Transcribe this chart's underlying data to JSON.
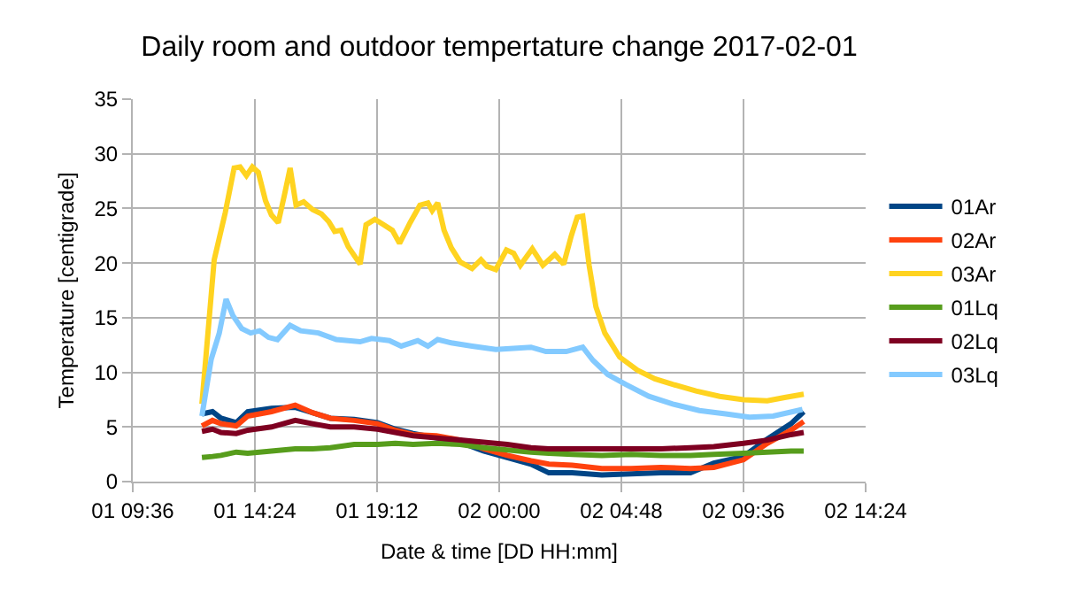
{
  "chart_data": {
    "type": "line",
    "title": "Daily room and outdoor tempertature change 2017-02-01",
    "xlabel": "Date & time [DD HH:mm]",
    "ylabel": "Temperature [centigrade]",
    "xlim": [
      "2017-02-01T09:36",
      "2017-02-02T14:24"
    ],
    "xticks": [
      {
        "value": "2017-02-01T09:36",
        "label": "01 09:36"
      },
      {
        "value": "2017-02-01T14:24",
        "label": "01 14:24"
      },
      {
        "value": "2017-02-01T19:12",
        "label": "01 19:12"
      },
      {
        "value": "2017-02-02T00:00",
        "label": "02 00:00"
      },
      {
        "value": "2017-02-02T04:48",
        "label": "02 04:48"
      },
      {
        "value": "2017-02-02T09:36",
        "label": "02 09:36"
      },
      {
        "value": "2017-02-02T14:24",
        "label": "02 14:24"
      }
    ],
    "ylim": [
      0,
      35
    ],
    "yticks": [
      0,
      5,
      10,
      15,
      20,
      25,
      30,
      35
    ],
    "grid": true,
    "legend": "right",
    "marker": "none",
    "line_style": "solid",
    "x": [
      "2017-02-01T12:19",
      "2017-02-01T12:44",
      "2017-02-01T13:04",
      "2017-02-01T13:40",
      "2017-02-01T14:07",
      "2017-02-01T15:03",
      "2017-02-01T15:59",
      "2017-02-01T16:40",
      "2017-02-01T17:22",
      "2017-02-01T18:18",
      "2017-02-01T19:13",
      "2017-02-01T19:55",
      "2017-02-01T20:37",
      "2017-02-01T21:32",
      "2017-02-01T22:28",
      "2017-02-01T23:23",
      "2017-02-02T00:19",
      "2017-02-02T01:15",
      "2017-02-02T01:57",
      "2017-02-02T02:52",
      "2017-02-02T04:02",
      "2017-02-02T05:11",
      "2017-02-02T06:21",
      "2017-02-02T07:31",
      "2017-02-02T08:26",
      "2017-02-02T09:36",
      "2017-02-02T10:32",
      "2017-02-02T11:28",
      "2017-02-02T11:58"
    ],
    "series": [
      {
        "name": "01Ar",
        "color": "#004586",
        "values": [
          6.2,
          6.4,
          5.8,
          5.4,
          6.4,
          6.7,
          6.8,
          6.3,
          5.8,
          5.7,
          5.4,
          4.8,
          4.4,
          4.0,
          3.6,
          2.8,
          2.2,
          1.6,
          0.8,
          0.8,
          0.6,
          0.7,
          0.8,
          0.8,
          1.7,
          2.3,
          3.9,
          5.3,
          6.4
        ]
      },
      {
        "name": "02Ar",
        "color": "#ff420e",
        "values": [
          5.1,
          5.6,
          5.3,
          5.1,
          6.0,
          6.4,
          7.0,
          6.3,
          5.8,
          5.6,
          5.3,
          4.7,
          4.3,
          4.2,
          3.8,
          3.0,
          2.4,
          1.9,
          1.6,
          1.5,
          1.2,
          1.2,
          1.3,
          1.2,
          1.3,
          2.0,
          3.5,
          4.7,
          5.5
        ]
      },
      {
        "name": "03Ar",
        "color": "#ffd320",
        "x": [
          "2017-02-01T12:19",
          "2017-02-01T12:48",
          "2017-02-01T13:14",
          "2017-02-01T13:35",
          "2017-02-01T13:49",
          "2017-02-01T14:04",
          "2017-02-01T14:18",
          "2017-02-01T14:32",
          "2017-02-01T14:49",
          "2017-02-01T15:03",
          "2017-02-01T15:19",
          "2017-02-01T15:34",
          "2017-02-01T15:47",
          "2017-02-01T16:01",
          "2017-02-01T16:19",
          "2017-02-01T16:40",
          "2017-02-01T17:01",
          "2017-02-01T17:18",
          "2017-02-01T17:32",
          "2017-02-01T17:47",
          "2017-02-01T18:04",
          "2017-02-01T18:32",
          "2017-02-01T18:46",
          "2017-02-01T19:07",
          "2017-02-01T19:28",
          "2017-02-01T19:48",
          "2017-02-01T20:05",
          "2017-02-01T20:30",
          "2017-02-01T20:53",
          "2017-02-01T21:12",
          "2017-02-01T21:22",
          "2017-02-01T21:35",
          "2017-02-01T21:50",
          "2017-02-01T22:07",
          "2017-02-01T22:28",
          "2017-02-01T22:56",
          "2017-02-01T23:17",
          "2017-02-01T23:31",
          "2017-02-01T23:52",
          "2017-02-02T00:17",
          "2017-02-02T00:34",
          "2017-02-02T00:50",
          "2017-02-02T01:18",
          "2017-02-02T01:43",
          "2017-02-02T02:11",
          "2017-02-02T02:32",
          "2017-02-02T02:50",
          "2017-02-02T03:04",
          "2017-02-02T03:17",
          "2017-02-02T03:32",
          "2017-02-02T03:48",
          "2017-02-02T04:09",
          "2017-02-02T04:44",
          "2017-02-02T05:26",
          "2017-02-02T06:07",
          "2017-02-02T06:49",
          "2017-02-02T07:44",
          "2017-02-02T08:40",
          "2017-02-02T09:36",
          "2017-02-02T10:32",
          "2017-02-02T11:13",
          "2017-02-02T11:58"
        ],
        "values": [
          7.1,
          20.3,
          24.6,
          28.7,
          28.8,
          28.0,
          28.8,
          28.3,
          25.7,
          24.4,
          23.7,
          26.3,
          28.7,
          25.3,
          25.6,
          24.9,
          24.5,
          23.8,
          22.9,
          23.0,
          21.5,
          19.9,
          23.5,
          24.0,
          23.5,
          23.0,
          21.8,
          23.7,
          25.3,
          25.5,
          24.8,
          25.5,
          23.0,
          21.4,
          20.1,
          19.5,
          20.3,
          19.7,
          19.4,
          21.2,
          20.9,
          19.8,
          21.3,
          19.8,
          20.8,
          19.9,
          22.5,
          24.2,
          24.3,
          19.8,
          16.0,
          13.6,
          11.4,
          10.2,
          9.4,
          8.9,
          8.3,
          7.8,
          7.5,
          7.4,
          7.7,
          8.0
        ]
      },
      {
        "name": "01Lq",
        "color": "#579d1c",
        "values": [
          2.2,
          2.3,
          2.4,
          2.7,
          2.6,
          2.8,
          3.0,
          3.0,
          3.1,
          3.4,
          3.4,
          3.5,
          3.4,
          3.5,
          3.4,
          3.1,
          2.9,
          2.7,
          2.6,
          2.5,
          2.4,
          2.5,
          2.4,
          2.4,
          2.5,
          2.6,
          2.7,
          2.8,
          2.8
        ]
      },
      {
        "name": "02Lq",
        "color": "#7e0021",
        "values": [
          4.6,
          4.8,
          4.5,
          4.4,
          4.7,
          5.0,
          5.6,
          5.3,
          5.0,
          5.0,
          4.8,
          4.5,
          4.2,
          4.0,
          3.8,
          3.6,
          3.4,
          3.1,
          3.0,
          3.0,
          3.0,
          3.0,
          3.0,
          3.1,
          3.2,
          3.5,
          3.8,
          4.3,
          4.5
        ]
      },
      {
        "name": "03Lq",
        "color": "#83caff",
        "x": [
          "2017-02-01T12:19",
          "2017-02-01T12:41",
          "2017-02-01T13:00",
          "2017-02-01T13:16",
          "2017-02-01T13:32",
          "2017-02-01T13:53",
          "2017-02-01T14:14",
          "2017-02-01T14:35",
          "2017-02-01T14:56",
          "2017-02-01T15:17",
          "2017-02-01T15:47",
          "2017-02-01T16:12",
          "2017-02-01T16:54",
          "2017-02-01T17:36",
          "2017-02-01T18:32",
          "2017-02-01T18:59",
          "2017-02-01T19:41",
          "2017-02-01T20:09",
          "2017-02-01T20:48",
          "2017-02-01T21:12",
          "2017-02-01T21:35",
          "2017-02-01T22:07",
          "2017-02-01T22:56",
          "2017-02-01T23:52",
          "2017-02-02T00:34",
          "2017-02-02T01:15",
          "2017-02-02T01:50",
          "2017-02-02T02:38",
          "2017-02-02T03:17",
          "2017-02-02T03:41",
          "2017-02-02T04:16",
          "2017-02-02T04:58",
          "2017-02-02T05:53",
          "2017-02-02T06:49",
          "2017-02-02T07:52",
          "2017-02-02T08:54",
          "2017-02-02T09:50",
          "2017-02-02T10:46",
          "2017-02-02T11:55"
        ],
        "values": [
          6.0,
          11.2,
          13.6,
          16.7,
          15.2,
          14.0,
          13.6,
          13.8,
          13.2,
          13.0,
          14.3,
          13.8,
          13.6,
          13.0,
          12.8,
          13.1,
          12.9,
          12.4,
          12.9,
          12.4,
          13.0,
          12.7,
          12.4,
          12.1,
          12.2,
          12.3,
          11.9,
          11.9,
          12.3,
          11.1,
          9.8,
          8.9,
          7.8,
          7.1,
          6.5,
          6.2,
          5.9,
          6.0,
          6.6
        ]
      }
    ]
  }
}
